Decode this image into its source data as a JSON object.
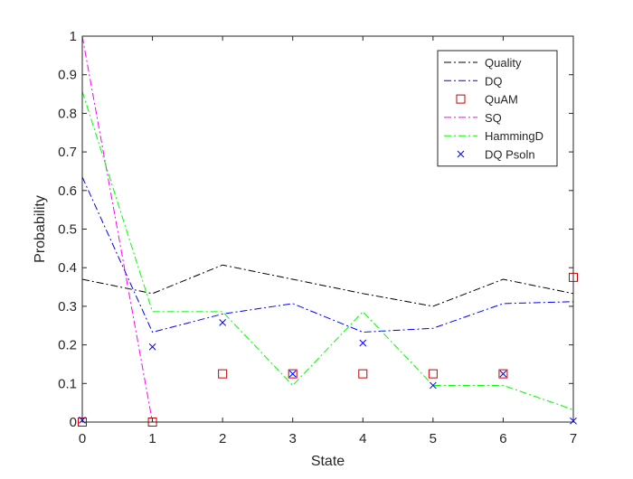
{
  "chart_data": {
    "type": "line",
    "xlabel": "State",
    "ylabel": "Probability",
    "xlim": [
      0,
      7
    ],
    "ylim": [
      0,
      1
    ],
    "xticks": [
      "0",
      "1",
      "2",
      "3",
      "4",
      "5",
      "6",
      "7"
    ],
    "yticks": [
      "0",
      "0.1",
      "0.2",
      "0.3",
      "0.4",
      "0.5",
      "0.6",
      "0.7",
      "0.8",
      "0.9",
      "1"
    ],
    "grid": false,
    "legend_position": "top-right",
    "x": [
      0,
      1,
      2,
      3,
      4,
      5,
      6,
      7
    ],
    "series": [
      {
        "name": "Quality",
        "style": "dash-dot",
        "marker": "none",
        "color": "#000000",
        "values": [
          0.37,
          0.333,
          0.407,
          0.37,
          0.333,
          0.3,
          0.37,
          0.333
        ]
      },
      {
        "name": "DQ",
        "style": "dash-dot",
        "marker": "none",
        "color": "#0000ff",
        "values": [
          0.635,
          0.233,
          0.28,
          0.307,
          0.233,
          0.243,
          0.307,
          0.312
        ]
      },
      {
        "name": "QuAM",
        "style": "none",
        "marker": "square",
        "color": "#cc0000",
        "values": [
          0,
          0,
          0.125,
          0.125,
          0.125,
          0.125,
          0.125,
          0.375
        ]
      },
      {
        "name": "SQ",
        "style": "dash-dot",
        "marker": "none",
        "color": "#ff00ff",
        "values": [
          1,
          0,
          0,
          0,
          0,
          0,
          0,
          0
        ]
      },
      {
        "name": "HammingD",
        "style": "dash-dot",
        "marker": "none",
        "color": "#00ff00",
        "values": [
          0.857,
          0.286,
          0.286,
          0.095,
          0.286,
          0.095,
          0.095,
          0.032
        ]
      },
      {
        "name": "DQ Psoln",
        "style": "none",
        "marker": "x",
        "color": "#0000ff",
        "values": [
          0.005,
          0.195,
          0.258,
          0.125,
          0.205,
          0.095,
          0.125,
          0.003
        ]
      }
    ]
  }
}
